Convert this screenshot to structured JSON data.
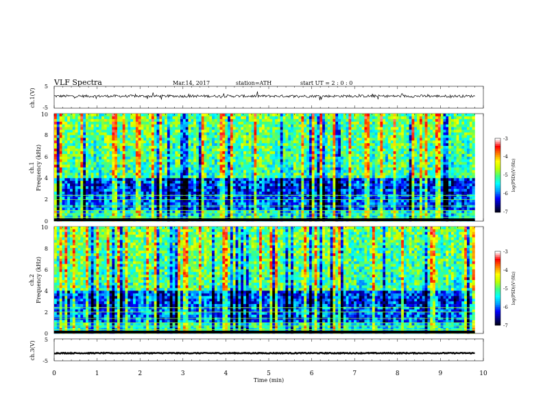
{
  "header": {
    "title": "VLF Spectra",
    "date": "Mar.14, 2017",
    "station": "station=ATH",
    "start_ut": "start UT = 2 : 0 : 0"
  },
  "chart_data": [
    {
      "type": "line",
      "panel": "ch1-waveform",
      "ylabel": "ch.1(V)",
      "ylim": [
        -5,
        5
      ],
      "ytick_labels": [
        "5",
        "-5"
      ],
      "xlim": [
        0,
        10
      ],
      "baseline_v": 0.5,
      "noise_amplitude_v": 0.6
    },
    {
      "type": "heatmap",
      "panel": "ch1-spectrogram",
      "ylabel_lines": [
        "ch.1",
        "Frequency (kHz)"
      ],
      "ylim": [
        0,
        10
      ],
      "ytick_labels": [
        "0",
        "2",
        "4",
        "6",
        "8",
        "10"
      ],
      "xlim": [
        0,
        9.8
      ],
      "colorbar": {
        "label": "log(PSD)(V²/Hz)",
        "range": [
          -7,
          -3
        ],
        "tick_labels": [
          "-3",
          "-4",
          "-5",
          "-6",
          "-7"
        ]
      }
    },
    {
      "type": "heatmap",
      "panel": "ch2-spectrogram",
      "ylabel_lines": [
        "ch.2",
        "Frequency (kHz)"
      ],
      "ylim": [
        0,
        10
      ],
      "ytick_labels": [
        "0",
        "2",
        "4",
        "6",
        "8",
        "10"
      ],
      "xlim": [
        0,
        9.8
      ],
      "colorbar": {
        "label": "log(PSD)(V²/Hz)",
        "range": [
          -7,
          -3
        ],
        "tick_labels": [
          "-3",
          "-4",
          "-5",
          "-6",
          "-7"
        ]
      }
    },
    {
      "type": "line",
      "panel": "ch3-waveform",
      "ylabel": "ch.3(V)",
      "ylim": [
        -5,
        5
      ],
      "ytick_labels": [
        "5",
        "-5"
      ],
      "xlim": [
        0,
        10
      ],
      "baseline_v": -1.5,
      "noise_amplitude_v": 0.2
    }
  ],
  "x_axis": {
    "label": "Time (min)",
    "tick_labels": [
      "0",
      "1",
      "2",
      "3",
      "4",
      "5",
      "6",
      "7",
      "8",
      "9",
      "10"
    ]
  },
  "colors": {
    "colormap": [
      "#000000",
      "#000080",
      "#0000ff",
      "#00a0ff",
      "#00ffff",
      "#40ff80",
      "#c0ff00",
      "#ffff00",
      "#ff8000",
      "#ff0000",
      "#ffffff"
    ]
  }
}
